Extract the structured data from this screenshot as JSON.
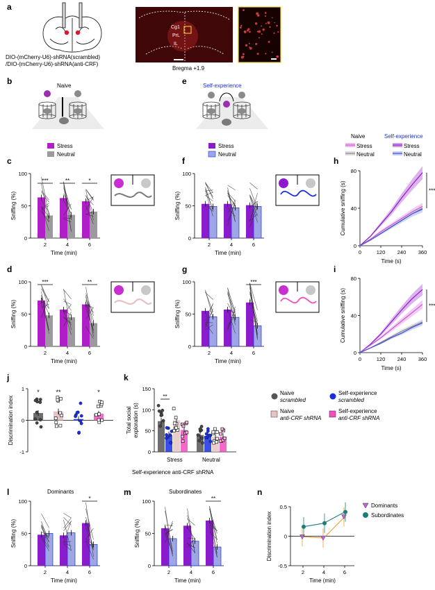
{
  "figure": {
    "panel_letters": [
      "a",
      "b",
      "c",
      "d",
      "e",
      "f",
      "g",
      "h",
      "i",
      "j",
      "k",
      "l",
      "m",
      "n"
    ],
    "panel_a": {
      "construct_line1": "DIO-(mCherry-U6)-shRNA(scrambled)",
      "construct_line2": "/DIO-(mCherry-U6)-shRNA(anti-CRF)",
      "region_cg1": "Cg1",
      "region_prl": "PrL",
      "region_il": "IL",
      "bregma": "Bregma +1.9"
    },
    "panel_b": {
      "label": "Naive"
    },
    "panel_e": {
      "label": "Self-experience"
    },
    "legend_cd": {
      "stress": "Stress",
      "neutral": "Neutral"
    },
    "legend_fg": {
      "stress": "Stress",
      "neutral": "Neutral"
    },
    "legend_h": {
      "naive_header": "Naive",
      "self_header": "Self-experience",
      "stress": "Stress",
      "neutral": "Neutral"
    },
    "legend_k": {
      "naive_scr_1": "Naive",
      "naive_scr_2": "scrambled",
      "self_scr_1": "Self-experience",
      "self_scr_2": "scrambled",
      "naive_crf_1": "Naive",
      "naive_crf_2": "anti-CRF shRNA",
      "self_crf_1": "Self-experience",
      "self_crf_2": "anti-CRF shRNA"
    },
    "axis": {
      "sniffing": "Sniffing (%)",
      "time_min": "Time (min)",
      "cumulative": "Cumulative sniffing (s)",
      "time_s": "Time (s)",
      "discrimination": "Discrimination index",
      "total_social_1": "Total social",
      "total_social_2": "exploration (s)"
    },
    "panel_k_xlabels": [
      "Stress",
      "Neutral"
    ],
    "panel_k_caption": "Self-experience anti-CRF shRNA",
    "panel_l_title": "Dominants",
    "panel_m_title": "Subordinates",
    "panel_n_legend": {
      "dominants": "Dominants",
      "subordinates": "Subordinates"
    },
    "significance": {
      "c": [
        "***",
        "**",
        "*"
      ],
      "d": [
        "***",
        "**"
      ],
      "g": [
        "***"
      ],
      "h": "***",
      "i": "***",
      "j": [
        "*",
        "**",
        "*"
      ],
      "k": "**",
      "l": "*",
      "m": "**"
    },
    "colors": {
      "stress": "#b01ec8",
      "neutral": "#9b9b9b",
      "self_neutral": "#9fa6e6",
      "self_stress": "#8a1ccc",
      "blue": "#1a2fe0",
      "pink": "#f04fbf",
      "light_pink": "#e5c4c4",
      "dark_grey": "#555555",
      "orange": "#f29a32",
      "teal": "#1f7d78",
      "violet_marker": "#c062e0"
    }
  },
  "chart_data": [
    {
      "id": "c",
      "type": "bar",
      "categories": [
        "2",
        "4",
        "6"
      ],
      "series": [
        {
          "name": "Stress",
          "values": [
            63,
            62,
            57
          ]
        },
        {
          "name": "Neutral",
          "values": [
            35,
            36,
            41
          ]
        }
      ],
      "ylim": [
        0,
        100
      ],
      "yticks": [
        "0",
        "50",
        "100"
      ],
      "ylabel": "Sniffing (%)",
      "xlabel": "Time (min)"
    },
    {
      "id": "d",
      "type": "bar",
      "categories": [
        "2",
        "4",
        "6"
      ],
      "series": [
        {
          "name": "Stress",
          "values": [
            71,
            57,
            65
          ]
        },
        {
          "name": "Neutral",
          "values": [
            48,
            45,
            36
          ]
        }
      ],
      "ylim": [
        0,
        100
      ],
      "yticks": [
        "0",
        "50",
        "100"
      ],
      "ylabel": "Sniffing (%)",
      "xlabel": "Time (min)"
    },
    {
      "id": "f",
      "type": "bar",
      "categories": [
        "2",
        "4",
        "6"
      ],
      "series": [
        {
          "name": "Stress",
          "values": [
            53,
            53,
            51
          ]
        },
        {
          "name": "Neutral",
          "values": [
            49,
            47,
            49
          ]
        }
      ],
      "ylim": [
        0,
        100
      ],
      "yticks": [
        "0",
        "50",
        "100"
      ],
      "ylabel": "Sniffing (%)",
      "xlabel": "Time (min)"
    },
    {
      "id": "g",
      "type": "bar",
      "categories": [
        "2",
        "4",
        "6"
      ],
      "series": [
        {
          "name": "Stress",
          "values": [
            55,
            57,
            68
          ]
        },
        {
          "name": "Neutral",
          "values": [
            46,
            45,
            32
          ]
        }
      ],
      "ylim": [
        0,
        100
      ],
      "yticks": [
        "0",
        "50",
        "100"
      ],
      "ylabel": "Sniffing (%)",
      "xlabel": "Time (min)"
    },
    {
      "id": "h",
      "type": "line",
      "x": [
        0,
        60,
        120,
        180,
        240,
        300,
        360
      ],
      "xticks": [
        "0",
        "120",
        "240",
        "360"
      ],
      "yticks": [
        "0",
        "40",
        "80"
      ],
      "ylim": [
        0,
        80
      ],
      "ylabel": "Cumulative sniffing (s)",
      "xlabel": "Time (s)",
      "series": [
        {
          "name": "Self-experience Stress",
          "values": [
            0,
            10,
            23,
            36,
            51,
            65,
            78
          ]
        },
        {
          "name": "Naive Stress",
          "values": [
            0,
            7,
            15,
            22,
            29,
            36,
            42
          ]
        },
        {
          "name": "Naive Neutral",
          "values": [
            0,
            6,
            13,
            20,
            27,
            34,
            40
          ]
        },
        {
          "name": "Self-experience Neutral",
          "values": [
            0,
            6,
            13,
            20,
            27,
            34,
            39
          ]
        }
      ]
    },
    {
      "id": "i",
      "type": "line",
      "x": [
        0,
        60,
        120,
        180,
        240,
        300,
        360
      ],
      "xticks": [
        "0",
        "120",
        "240",
        "360"
      ],
      "yticks": [
        "0",
        "40",
        "80"
      ],
      "ylim": [
        0,
        80
      ],
      "ylabel": "Cumulative sniffing (s)",
      "xlabel": "Time (s)",
      "series": [
        {
          "name": "Self-experience Stress",
          "values": [
            0,
            9,
            20,
            33,
            46,
            58,
            68
          ]
        },
        {
          "name": "Naive Stress",
          "values": [
            0,
            8,
            16,
            25,
            34,
            43,
            52
          ]
        },
        {
          "name": "Naive Neutral",
          "values": [
            0,
            5,
            11,
            17,
            23,
            28,
            33
          ]
        },
        {
          "name": "Self-experience Neutral",
          "values": [
            0,
            5,
            10,
            16,
            21,
            27,
            32
          ]
        }
      ]
    },
    {
      "id": "j",
      "type": "bar",
      "categories": [
        "Naive scrambled",
        "Naive anti-CRF",
        "Self-exp scrambled",
        "Self-exp anti-CRF"
      ],
      "values": [
        0.23,
        0.28,
        0.04,
        0.21
      ],
      "ylim": [
        -1,
        1
      ],
      "yticks": [
        "-1",
        "0",
        "1"
      ],
      "ylabel": "Discrimination index"
    },
    {
      "id": "k",
      "type": "bar",
      "categories": [
        "Stress",
        "Neutral"
      ],
      "series": [
        {
          "name": "Naive scrambled",
          "values": [
            73,
            40
          ]
        },
        {
          "name": "Self-experience scrambled",
          "values": [
            40,
            38
          ]
        },
        {
          "name": "Naive anti-CRF shRNA",
          "values": [
            75,
            36
          ]
        },
        {
          "name": "Self-experience anti-CRF shRNA",
          "values": [
            52,
            36
          ]
        }
      ],
      "ylim": [
        0,
        150
      ],
      "yticks": [
        "0",
        "50",
        "100",
        "150"
      ],
      "ylabel": "Total social exploration (s)"
    },
    {
      "id": "l",
      "type": "bar",
      "title": "Dominants",
      "categories": [
        "2",
        "4",
        "6"
      ],
      "series": [
        {
          "name": "Stress",
          "values": [
            48,
            47,
            66
          ]
        },
        {
          "name": "Neutral",
          "values": [
            50,
            51,
            33
          ]
        }
      ],
      "ylim": [
        0,
        100
      ],
      "yticks": [
        "0",
        "50",
        "100"
      ],
      "ylabel": "Sniffing (%)",
      "xlabel": "Time (min)"
    },
    {
      "id": "m",
      "type": "bar",
      "title": "Subordinates",
      "categories": [
        "2",
        "4",
        "6"
      ],
      "series": [
        {
          "name": "Stress",
          "values": [
            58,
            62,
            70
          ]
        },
        {
          "name": "Neutral",
          "values": [
            42,
            38,
            29
          ]
        }
      ],
      "ylim": [
        0,
        100
      ],
      "yticks": [
        "0",
        "50",
        "100"
      ],
      "ylabel": "Sniffing (%)",
      "xlabel": "Time (min)"
    },
    {
      "id": "n",
      "type": "line",
      "x": [
        2,
        4,
        6
      ],
      "xticks": [
        "2",
        "4",
        "6"
      ],
      "yticks": [
        "-0.5",
        "0",
        "0.5"
      ],
      "ylim": [
        -0.5,
        0.5
      ],
      "ylabel": "Discrimination index",
      "xlabel": "Time (min)",
      "series": [
        {
          "name": "Dominants",
          "values": [
            -0.01,
            -0.03,
            0.33
          ]
        },
        {
          "name": "Subordinates",
          "values": [
            0.16,
            0.22,
            0.41
          ]
        }
      ]
    }
  ]
}
